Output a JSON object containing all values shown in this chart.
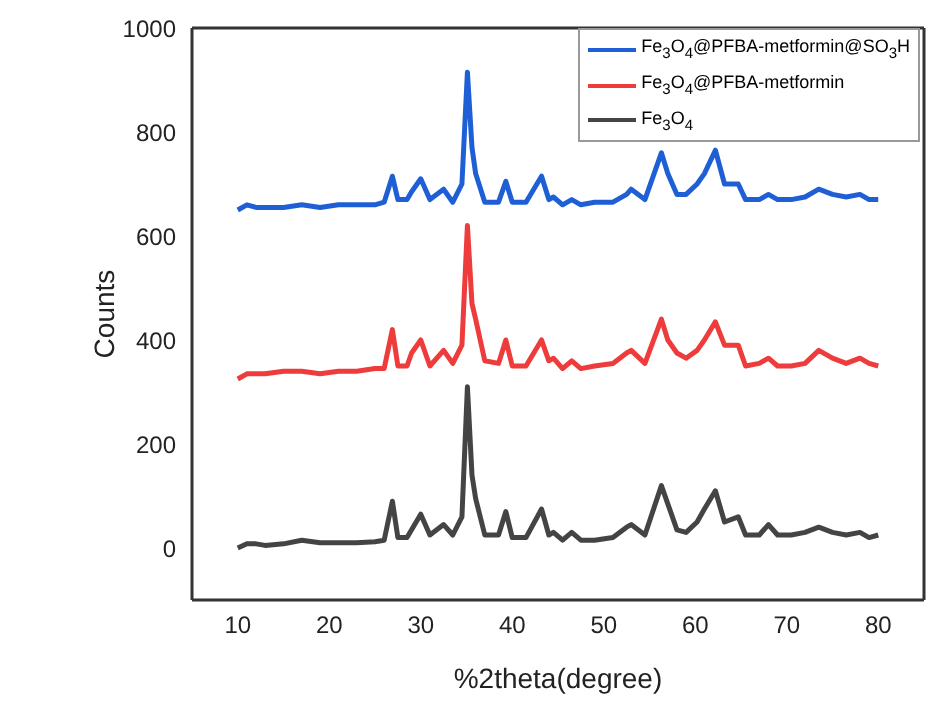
{
  "chart_data": {
    "type": "line",
    "xlabel": "%2theta(degree)",
    "ylabel": "Counts",
    "x": [
      10,
      11,
      12,
      13,
      15,
      17,
      19,
      21,
      23,
      25,
      26,
      26.9,
      27.5,
      28.5,
      29,
      30,
      31,
      32.5,
      33.5,
      34.5,
      35.1,
      35.6,
      36,
      37,
      38.5,
      39.3,
      40,
      41.5,
      43.2,
      44,
      44.5,
      45.5,
      46.5,
      47.5,
      49,
      51,
      52.5,
      53,
      54.5,
      56.3,
      57,
      58,
      59,
      60.2,
      61,
      62.2,
      63.2,
      64.7,
      65.5,
      67,
      68,
      69,
      70.5,
      72,
      73.5,
      75,
      76.5,
      78,
      79,
      80
    ],
    "series": [
      {
        "name": "Fe$_{3}$O$_{4}$@PFBA-metformin@SO$_{3}$H",
        "color": "#1f5fd6",
        "values": [
          650,
          660,
          655,
          655,
          655,
          660,
          655,
          660,
          660,
          660,
          665,
          715,
          670,
          670,
          685,
          710,
          670,
          690,
          665,
          700,
          915,
          770,
          720,
          665,
          665,
          705,
          665,
          665,
          715,
          670,
          675,
          660,
          670,
          660,
          665,
          665,
          680,
          690,
          670,
          760,
          720,
          680,
          680,
          700,
          720,
          765,
          700,
          700,
          670,
          670,
          680,
          670,
          670,
          675,
          690,
          680,
          675,
          680,
          670,
          670
        ]
      },
      {
        "name": "Fe$_{3}$O$_{4}$@PFBA-metformin",
        "color": "#ee3b3b",
        "values": [
          325,
          335,
          335,
          335,
          340,
          340,
          335,
          340,
          340,
          345,
          345,
          420,
          350,
          350,
          375,
          400,
          350,
          380,
          355,
          390,
          620,
          470,
          440,
          360,
          355,
          400,
          350,
          350,
          400,
          360,
          365,
          345,
          360,
          345,
          350,
          355,
          375,
          380,
          355,
          440,
          400,
          375,
          365,
          380,
          400,
          435,
          390,
          390,
          350,
          355,
          365,
          350,
          350,
          355,
          380,
          365,
          355,
          365,
          355,
          350
        ]
      },
      {
        "name": "Fe$_{3}$O$_{4}$",
        "color": "#444444",
        "values": [
          0,
          8,
          8,
          5,
          8,
          15,
          10,
          10,
          10,
          12,
          15,
          90,
          20,
          20,
          35,
          65,
          25,
          45,
          25,
          60,
          310,
          140,
          95,
          25,
          25,
          70,
          20,
          20,
          75,
          25,
          30,
          15,
          30,
          15,
          15,
          20,
          40,
          45,
          25,
          120,
          85,
          35,
          30,
          50,
          75,
          110,
          50,
          60,
          25,
          25,
          45,
          25,
          25,
          30,
          40,
          30,
          25,
          30,
          20,
          25
        ]
      }
    ],
    "xlim": [
      5,
      85
    ],
    "xticks": [
      10,
      20,
      30,
      40,
      50,
      60,
      70,
      80
    ],
    "ylim": [
      -100,
      1000
    ],
    "yticks": [
      0,
      200,
      400,
      600,
      800,
      1000
    ],
    "grid": false,
    "legend": "top right",
    "marker": "none",
    "line_style": "solid"
  }
}
